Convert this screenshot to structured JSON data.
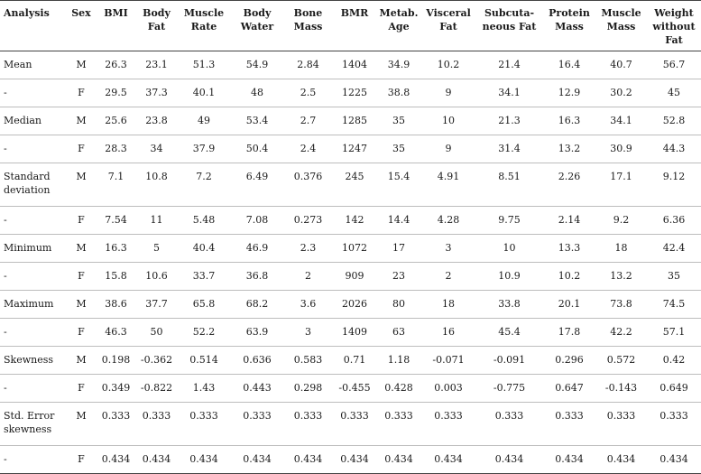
{
  "table": {
    "headers": [
      "Analysis",
      "Sex",
      "BMI",
      "Body Fat",
      "Muscle Rate",
      "Body Water",
      "Bone Mass",
      "BMR",
      "Metab. Age",
      "Visceral Fat",
      "Subcuta-neous Fat",
      "Protein Mass",
      "Muscle Mass",
      "Weight without Fat"
    ],
    "rows": [
      [
        "Mean",
        "M",
        "26.3",
        "23.1",
        "51.3",
        "54.9",
        "2.84",
        "1404",
        "34.9",
        "10.2",
        "21.4",
        "16.4",
        "40.7",
        "56.7"
      ],
      [
        "-",
        "F",
        "29.5",
        "37.3",
        "40.1",
        "48",
        "2.5",
        "1225",
        "38.8",
        "9",
        "34.1",
        "12.9",
        "30.2",
        "45"
      ],
      [
        "Median",
        "M",
        "25.6",
        "23.8",
        "49",
        "53.4",
        "2.7",
        "1285",
        "35",
        "10",
        "21.3",
        "16.3",
        "34.1",
        "52.8"
      ],
      [
        "-",
        "F",
        "28.3",
        "34",
        "37.9",
        "50.4",
        "2.4",
        "1247",
        "35",
        "9",
        "31.4",
        "13.2",
        "30.9",
        "44.3"
      ],
      [
        "Standard deviation",
        "M",
        "7.1",
        "10.8",
        "7.2",
        "6.49",
        "0.376",
        "245",
        "15.4",
        "4.91",
        "8.51",
        "2.26",
        "17.1",
        "9.12"
      ],
      [
        "-",
        "F",
        "7.54",
        "11",
        "5.48",
        "7.08",
        "0.273",
        "142",
        "14.4",
        "4.28",
        "9.75",
        "2.14",
        "9.2",
        "6.36"
      ],
      [
        "Minimum",
        "M",
        "16.3",
        "5",
        "40.4",
        "46.9",
        "2.3",
        "1072",
        "17",
        "3",
        "10",
        "13.3",
        "18",
        "42.4"
      ],
      [
        "-",
        "F",
        "15.8",
        "10.6",
        "33.7",
        "36.8",
        "2",
        "909",
        "23",
        "2",
        "10.9",
        "10.2",
        "13.2",
        "35"
      ],
      [
        "Maximum",
        "M",
        "38.6",
        "37.7",
        "65.8",
        "68.2",
        "3.6",
        "2026",
        "80",
        "18",
        "33.8",
        "20.1",
        "73.8",
        "74.5"
      ],
      [
        "-",
        "F",
        "46.3",
        "50",
        "52.2",
        "63.9",
        "3",
        "1409",
        "63",
        "16",
        "45.4",
        "17.8",
        "42.2",
        "57.1"
      ],
      [
        "Skewness",
        "M",
        "0.198",
        "-0.362",
        "0.514",
        "0.636",
        "0.583",
        "0.71",
        "1.18",
        "-0.071",
        "-0.091",
        "0.296",
        "0.572",
        "0.42"
      ],
      [
        "-",
        "F",
        "0.349",
        "-0.822",
        "1.43",
        "0.443",
        "0.298",
        "-0.455",
        "0.428",
        "0.003",
        "-0.775",
        "0.647",
        "-0.143",
        "0.649"
      ],
      [
        "Std. Error skewness",
        "M",
        "0.333",
        "0.333",
        "0.333",
        "0.333",
        "0.333",
        "0.333",
        "0.333",
        "0.333",
        "0.333",
        "0.333",
        "0.333",
        "0.333"
      ],
      [
        "-",
        "F",
        "0.434",
        "0.434",
        "0.434",
        "0.434",
        "0.434",
        "0.434",
        "0.434",
        "0.434",
        "0.434",
        "0.434",
        "0.434",
        "0.434"
      ]
    ]
  }
}
